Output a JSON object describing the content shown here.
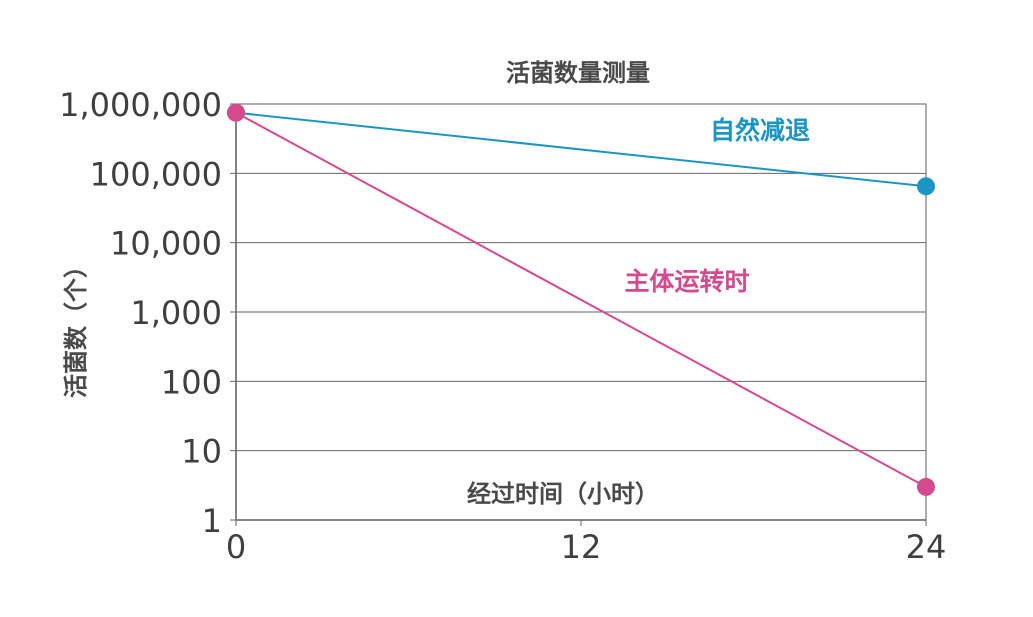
{
  "chart_data": {
    "type": "line",
    "title": "活菌数量测量",
    "xlabel": "经过时间（小时）",
    "ylabel": "活菌数（个）",
    "x_ticks": [
      "0",
      "12",
      "24"
    ],
    "y_ticks": [
      "1",
      "10",
      "100",
      "1,000",
      "10,000",
      "100,000",
      "1,000,000"
    ],
    "xlim": [
      0,
      24
    ],
    "ylim": [
      1,
      1000000
    ],
    "y_scale": "log",
    "grid": true,
    "series": [
      {
        "name": "自然减退",
        "x": [
          0,
          24
        ],
        "y": [
          750000,
          65000
        ],
        "color": "#1a95c4"
      },
      {
        "name": "主体运转时",
        "x": [
          0,
          24
        ],
        "y": [
          750000,
          3
        ],
        "color": "#d44a8d"
      }
    ]
  }
}
